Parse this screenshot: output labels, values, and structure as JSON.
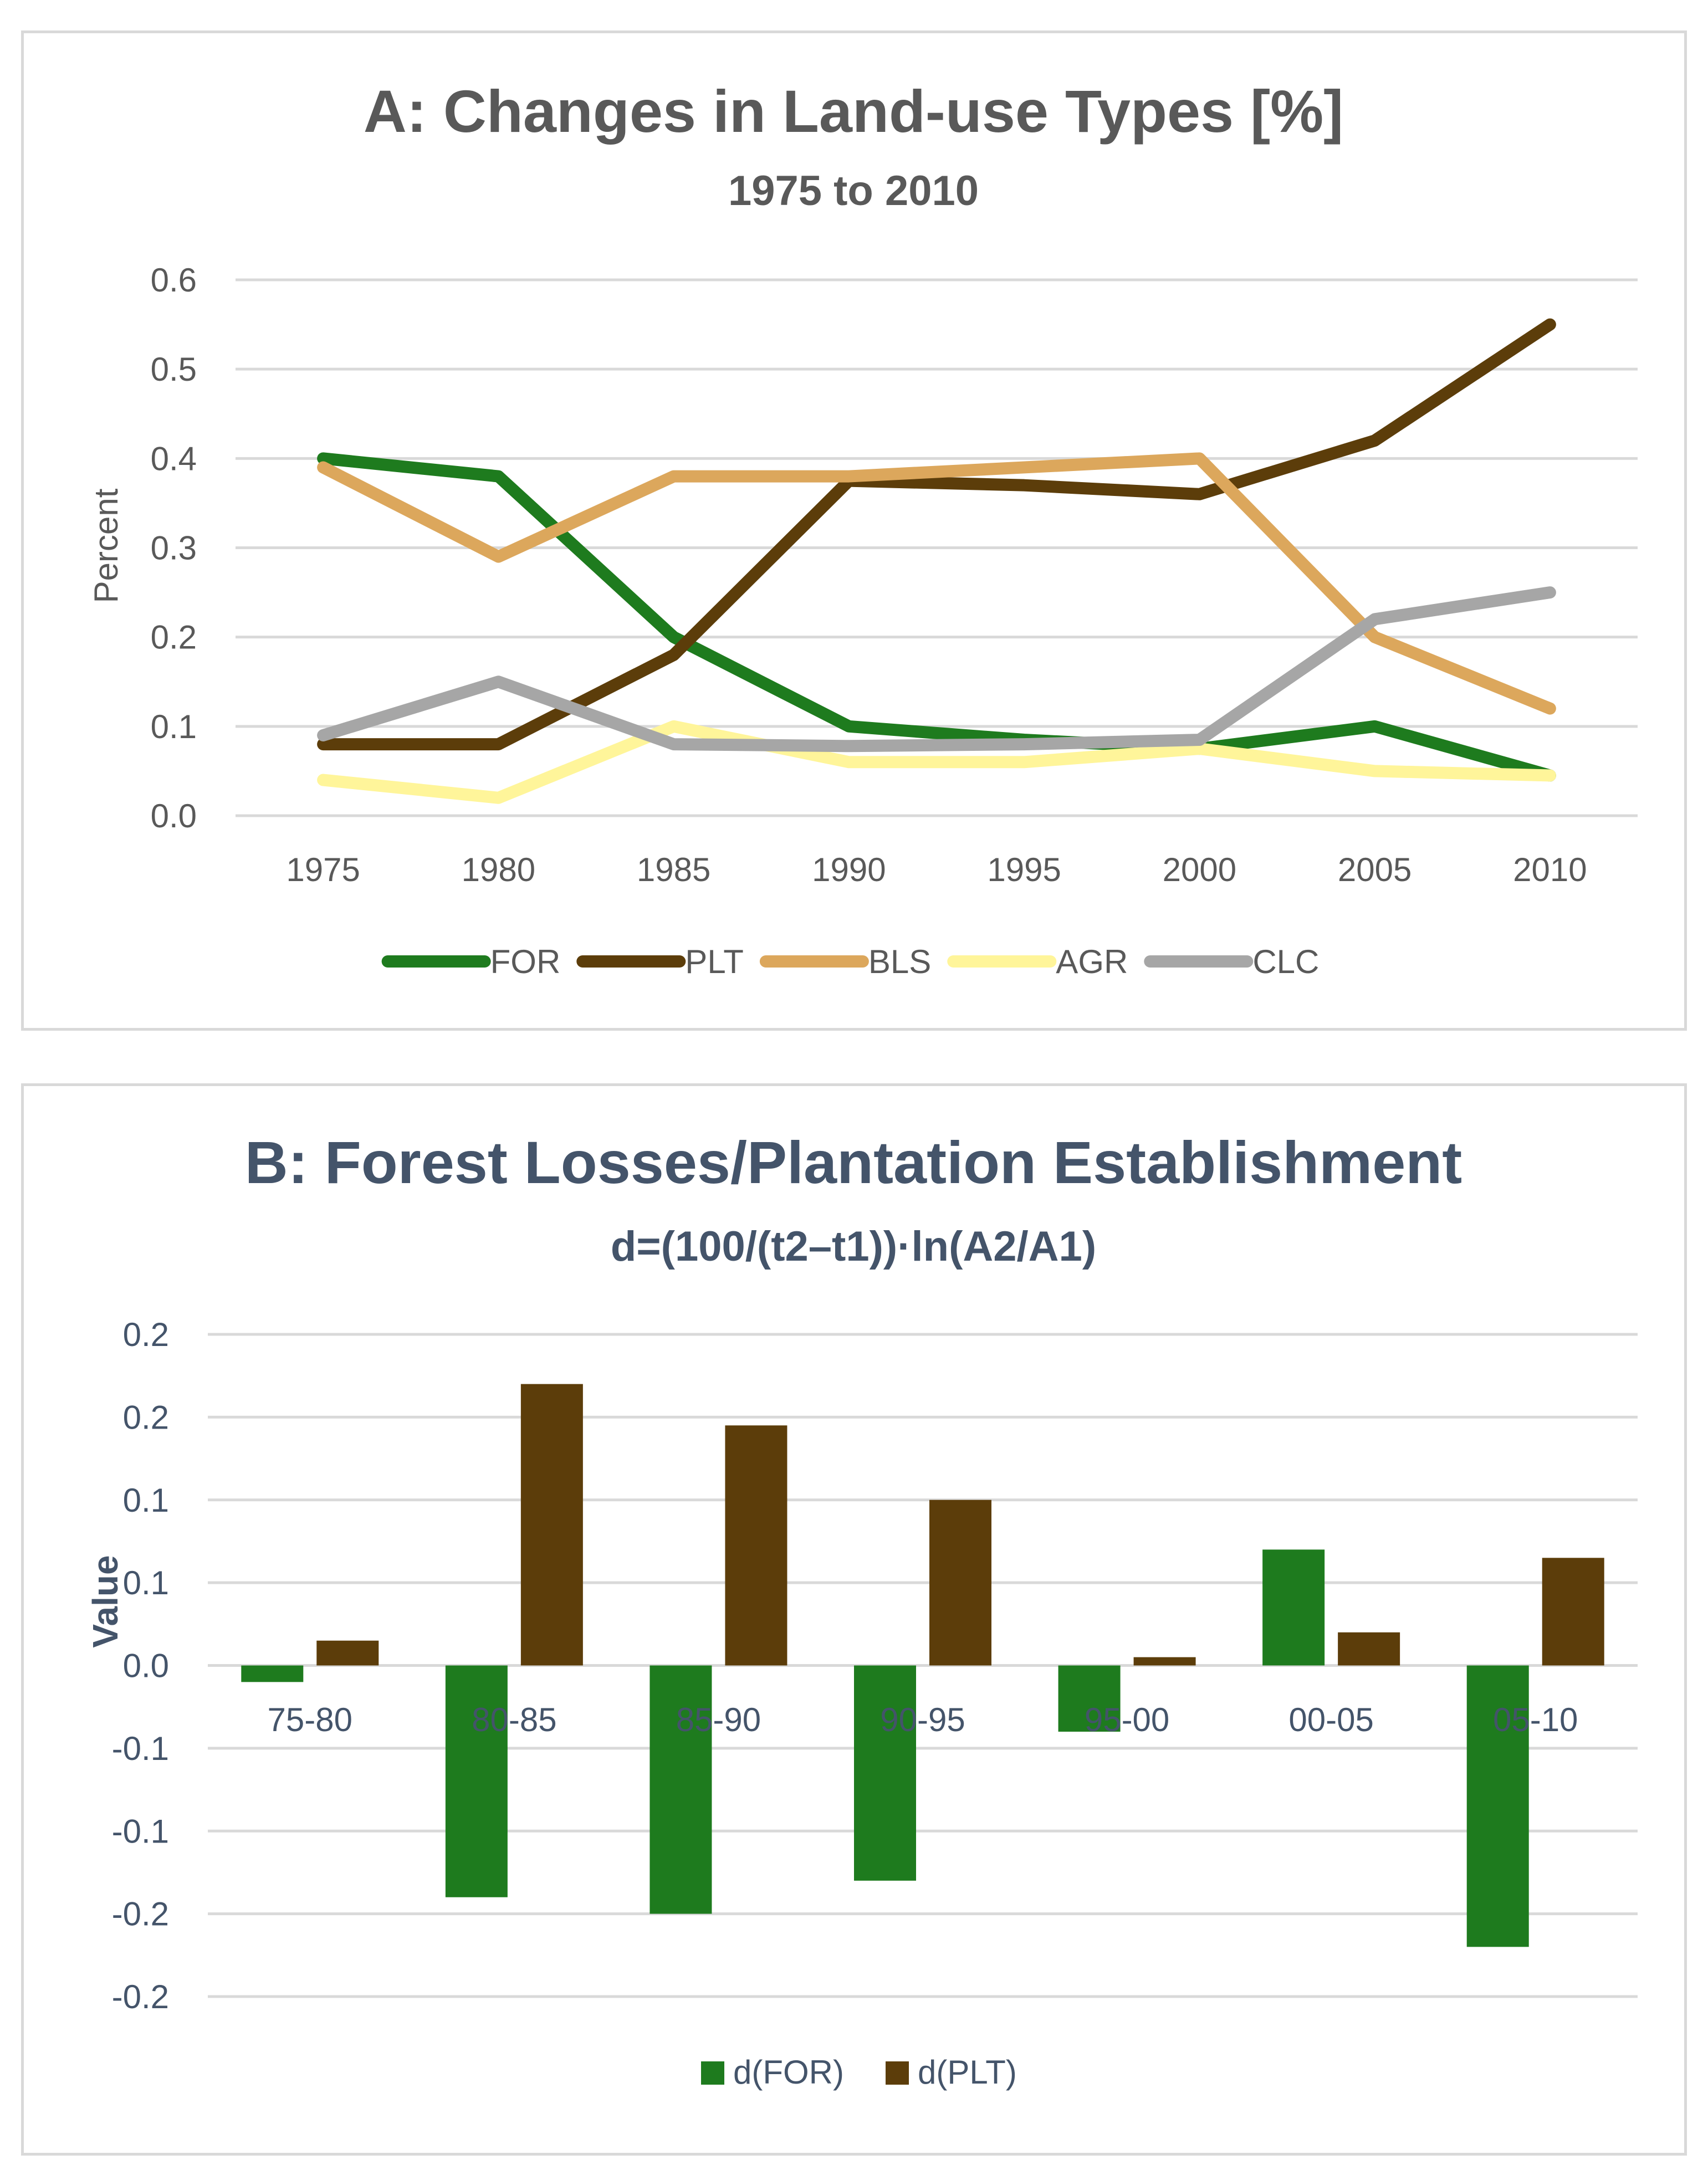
{
  "chart_data": [
    {
      "type": "line",
      "title": "A: Changes in Land-use Types [%]",
      "subtitle": "1975 to 2010",
      "xlabel": "",
      "ylabel": "Percent",
      "categories": [
        "1975",
        "1980",
        "1985",
        "1990",
        "1995",
        "2000",
        "2005",
        "2010"
      ],
      "yticks": [
        "0.0",
        "0.1",
        "0.2",
        "0.3",
        "0.4",
        "0.5",
        "0.6"
      ],
      "ylim": [
        0,
        0.6
      ],
      "grid": true,
      "legend_position": "bottom",
      "series": [
        {
          "name": "FOR",
          "color": "#1e7b1e",
          "values": [
            0.4,
            0.38,
            0.2,
            0.1,
            0.085,
            0.075,
            0.1,
            0.045
          ]
        },
        {
          "name": "PLT",
          "color": "#5c3d0a",
          "values": [
            0.08,
            0.08,
            0.18,
            0.375,
            0.37,
            0.36,
            0.42,
            0.55
          ]
        },
        {
          "name": "BLS",
          "color": "#dca75c",
          "values": [
            0.39,
            0.29,
            0.38,
            0.38,
            0.39,
            0.4,
            0.2,
            0.12
          ]
        },
        {
          "name": "AGR",
          "color": "#fff59a",
          "values": [
            0.04,
            0.02,
            0.1,
            0.06,
            0.06,
            0.075,
            0.05,
            0.045
          ]
        },
        {
          "name": "CLC",
          "color": "#a6a6a6",
          "values": [
            0.09,
            0.15,
            0.08,
            0.078,
            0.08,
            0.085,
            0.22,
            0.25
          ]
        }
      ]
    },
    {
      "type": "bar",
      "title": "B: Forest Losses/Plantation Establishment",
      "subtitle": "d=(100/(t2–t1))·ln(A2/A1)",
      "xlabel": "",
      "ylabel": "Value",
      "categories": [
        "75-80",
        "80-85",
        "85-90",
        "90-95",
        "95-00",
        "00-05",
        "05-10"
      ],
      "yticks": [
        "-0.2",
        "-0.2",
        "-0.1",
        "-0.1",
        "0.0",
        "0.1",
        "0.1",
        "0.2",
        "0.2"
      ],
      "ylim": [
        -0.2,
        0.2
      ],
      "grid": true,
      "legend_position": "bottom",
      "series": [
        {
          "name": "d(FOR)",
          "color": "#1e7b1e",
          "values": [
            -0.01,
            -0.14,
            -0.15,
            -0.13,
            -0.04,
            0.07,
            -0.17
          ]
        },
        {
          "name": "d(PLT)",
          "color": "#5c3d0a",
          "values": [
            0.015,
            0.17,
            0.145,
            0.1,
            0.005,
            0.02,
            0.065
          ]
        }
      ]
    }
  ]
}
